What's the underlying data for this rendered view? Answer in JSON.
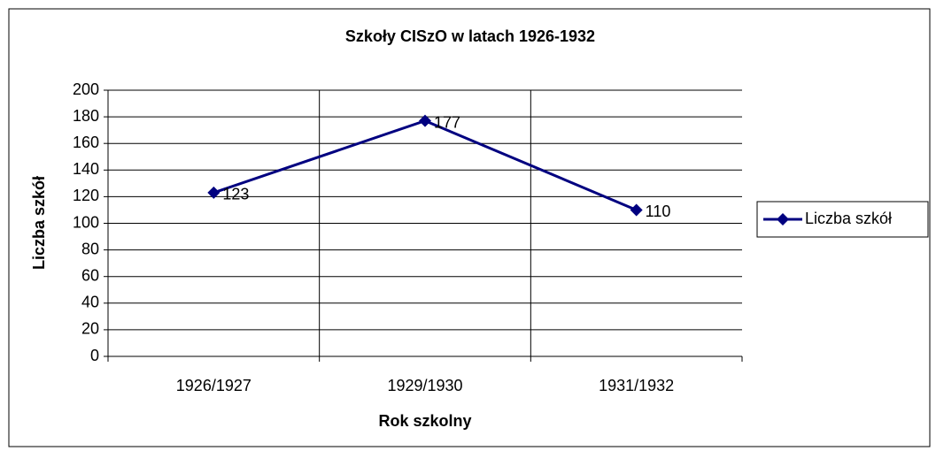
{
  "chart_data": {
    "type": "line",
    "title": "Szkoły CISzO w latach 1926-1932",
    "x_label": "Rok szkolny",
    "y_label": "Liczba szkół",
    "categories": [
      "1926/1927",
      "1929/1930",
      "1931/1932"
    ],
    "series": [
      {
        "name": "Liczba szkół",
        "color": "#000080",
        "values": [
          123,
          177,
          110
        ]
      }
    ],
    "ylim": [
      0,
      200
    ],
    "yticks": [
      0,
      20,
      40,
      60,
      80,
      100,
      120,
      140,
      160,
      180,
      200
    ],
    "grid": true,
    "legend": "right",
    "data_labels": true
  }
}
